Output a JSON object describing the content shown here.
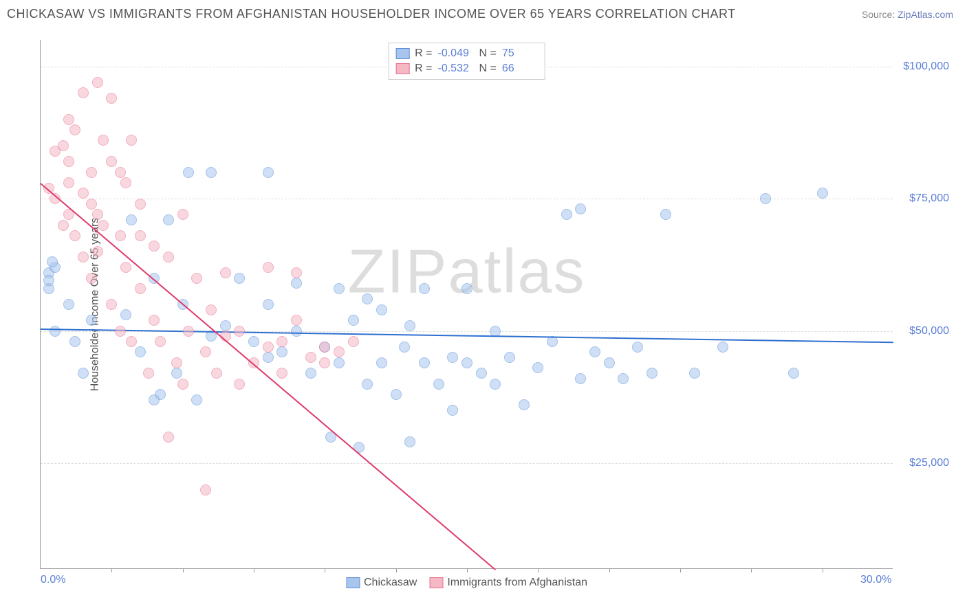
{
  "header": {
    "title": "CHICKASAW VS IMMIGRANTS FROM AFGHANISTAN HOUSEHOLDER INCOME OVER 65 YEARS CORRELATION CHART",
    "source_prefix": "Source: ",
    "source_link": "ZipAtlas.com"
  },
  "chart": {
    "type": "scatter",
    "ylabel": "Householder Income Over 65 years",
    "watermark": "ZIPatlas",
    "background_color": "#ffffff",
    "grid_color": "#dddddd",
    "axis_color": "#999999",
    "xlim": [
      0,
      30
    ],
    "ylim": [
      5000,
      105000
    ],
    "yticks": [
      {
        "v": 25000,
        "label": "$25,000"
      },
      {
        "v": 50000,
        "label": "$50,000"
      },
      {
        "v": 75000,
        "label": "$75,000"
      },
      {
        "v": 100000,
        "label": "$100,000"
      }
    ],
    "xticks": [
      {
        "v": 0,
        "label": "0.0%"
      },
      {
        "v": 30,
        "label": "30.0%"
      }
    ],
    "xtick_marks": [
      2.5,
      5,
      7.5,
      10,
      12.5,
      15,
      17.5,
      20,
      22.5,
      25,
      27.5
    ],
    "marker_radius": 8,
    "marker_opacity": 0.55,
    "series": [
      {
        "name": "Chickasaw",
        "fill": "#a9c5ee",
        "stroke": "#5b8fd6",
        "trend_color": "#2e6fd0",
        "R": "-0.049",
        "N": "75",
        "trend": {
          "x1": 0,
          "y1": 50500,
          "x2": 30,
          "y2": 48000
        },
        "points": [
          [
            0.3,
            61000
          ],
          [
            0.3,
            58000
          ],
          [
            0.3,
            59500
          ],
          [
            0.5,
            62000
          ],
          [
            0.4,
            63000
          ],
          [
            0.5,
            50000
          ],
          [
            1.0,
            55000
          ],
          [
            1.2,
            48000
          ],
          [
            1.5,
            42000
          ],
          [
            1.8,
            52000
          ],
          [
            3.2,
            71000
          ],
          [
            4.5,
            71000
          ],
          [
            5.2,
            80000
          ],
          [
            3.0,
            53000
          ],
          [
            3.5,
            46000
          ],
          [
            4.0,
            60000
          ],
          [
            4.2,
            38000
          ],
          [
            4.8,
            42000
          ],
          [
            5.0,
            55000
          ],
          [
            5.5,
            37000
          ],
          [
            6.0,
            49000
          ],
          [
            6.0,
            80000
          ],
          [
            6.5,
            51000
          ],
          [
            7.0,
            60000
          ],
          [
            7.5,
            48000
          ],
          [
            8.0,
            55000
          ],
          [
            8.0,
            80000
          ],
          [
            8.5,
            46000
          ],
          [
            9.0,
            50000
          ],
          [
            9.0,
            59000
          ],
          [
            9.5,
            42000
          ],
          [
            10.0,
            47000
          ],
          [
            10.2,
            30000
          ],
          [
            10.5,
            44000
          ],
          [
            10.5,
            58000
          ],
          [
            11.0,
            52000
          ],
          [
            11.2,
            28000
          ],
          [
            11.5,
            40000
          ],
          [
            12.0,
            54000
          ],
          [
            12.0,
            44000
          ],
          [
            12.5,
            38000
          ],
          [
            13.0,
            29000
          ],
          [
            13.0,
            51000
          ],
          [
            13.5,
            44000
          ],
          [
            14.0,
            40000
          ],
          [
            14.5,
            35000
          ],
          [
            14.5,
            45000
          ],
          [
            15.0,
            58000
          ],
          [
            15.5,
            42000
          ],
          [
            16.0,
            50000
          ],
          [
            16.0,
            40000
          ],
          [
            16.5,
            45000
          ],
          [
            17.0,
            36000
          ],
          [
            17.5,
            43000
          ],
          [
            18.0,
            48000
          ],
          [
            18.5,
            72000
          ],
          [
            19.0,
            41000
          ],
          [
            19.5,
            46000
          ],
          [
            20.0,
            44000
          ],
          [
            20.5,
            41000
          ],
          [
            21.0,
            47000
          ],
          [
            21.5,
            42000
          ],
          [
            22.0,
            72000
          ],
          [
            23.0,
            42000
          ],
          [
            24.0,
            47000
          ],
          [
            25.5,
            75000
          ],
          [
            26.5,
            42000
          ],
          [
            27.5,
            76000
          ],
          [
            15.0,
            44000
          ],
          [
            13.5,
            58000
          ],
          [
            11.5,
            56000
          ],
          [
            8.0,
            45000
          ],
          [
            19.0,
            73000
          ],
          [
            12.8,
            47000
          ],
          [
            4.0,
            37000
          ]
        ]
      },
      {
        "name": "Immigrants from Afghanistan",
        "fill": "#f5b8c5",
        "stroke": "#e86f8f",
        "trend_color": "#e03a6a",
        "R": "-0.532",
        "N": "66",
        "trend": {
          "x1": 0,
          "y1": 78000,
          "x2": 16,
          "y2": 5000
        },
        "points": [
          [
            0.3,
            77000
          ],
          [
            0.5,
            75000
          ],
          [
            0.5,
            84000
          ],
          [
            0.8,
            85000
          ],
          [
            0.8,
            70000
          ],
          [
            1.0,
            78000
          ],
          [
            1.0,
            82000
          ],
          [
            1.0,
            72000
          ],
          [
            1.2,
            68000
          ],
          [
            1.2,
            88000
          ],
          [
            1.5,
            76000
          ],
          [
            1.5,
            64000
          ],
          [
            1.5,
            95000
          ],
          [
            1.8,
            60000
          ],
          [
            1.8,
            74000
          ],
          [
            2.0,
            97000
          ],
          [
            2.0,
            72000
          ],
          [
            2.0,
            65000
          ],
          [
            2.2,
            86000
          ],
          [
            2.2,
            70000
          ],
          [
            2.5,
            82000
          ],
          [
            2.5,
            94000
          ],
          [
            2.5,
            55000
          ],
          [
            2.8,
            50000
          ],
          [
            2.8,
            68000
          ],
          [
            3.0,
            78000
          ],
          [
            3.0,
            62000
          ],
          [
            3.2,
            86000
          ],
          [
            3.2,
            48000
          ],
          [
            3.5,
            58000
          ],
          [
            3.5,
            74000
          ],
          [
            3.8,
            42000
          ],
          [
            4.0,
            66000
          ],
          [
            4.0,
            52000
          ],
          [
            4.2,
            48000
          ],
          [
            4.5,
            64000
          ],
          [
            4.5,
            30000
          ],
          [
            4.8,
            44000
          ],
          [
            5.0,
            72000
          ],
          [
            5.0,
            40000
          ],
          [
            5.2,
            50000
          ],
          [
            5.5,
            60000
          ],
          [
            5.8,
            46000
          ],
          [
            5.8,
            20000
          ],
          [
            6.0,
            54000
          ],
          [
            6.2,
            42000
          ],
          [
            6.5,
            49000
          ],
          [
            6.5,
            61000
          ],
          [
            7.0,
            50000
          ],
          [
            7.0,
            40000
          ],
          [
            7.5,
            44000
          ],
          [
            8.0,
            47000
          ],
          [
            8.0,
            62000
          ],
          [
            8.5,
            42000
          ],
          [
            8.5,
            48000
          ],
          [
            9.0,
            52000
          ],
          [
            9.0,
            61000
          ],
          [
            9.5,
            45000
          ],
          [
            10.0,
            47000
          ],
          [
            10.0,
            44000
          ],
          [
            10.5,
            46000
          ],
          [
            11.0,
            48000
          ],
          [
            1.0,
            90000
          ],
          [
            1.8,
            80000
          ],
          [
            2.8,
            80000
          ],
          [
            3.5,
            68000
          ]
        ]
      }
    ]
  }
}
